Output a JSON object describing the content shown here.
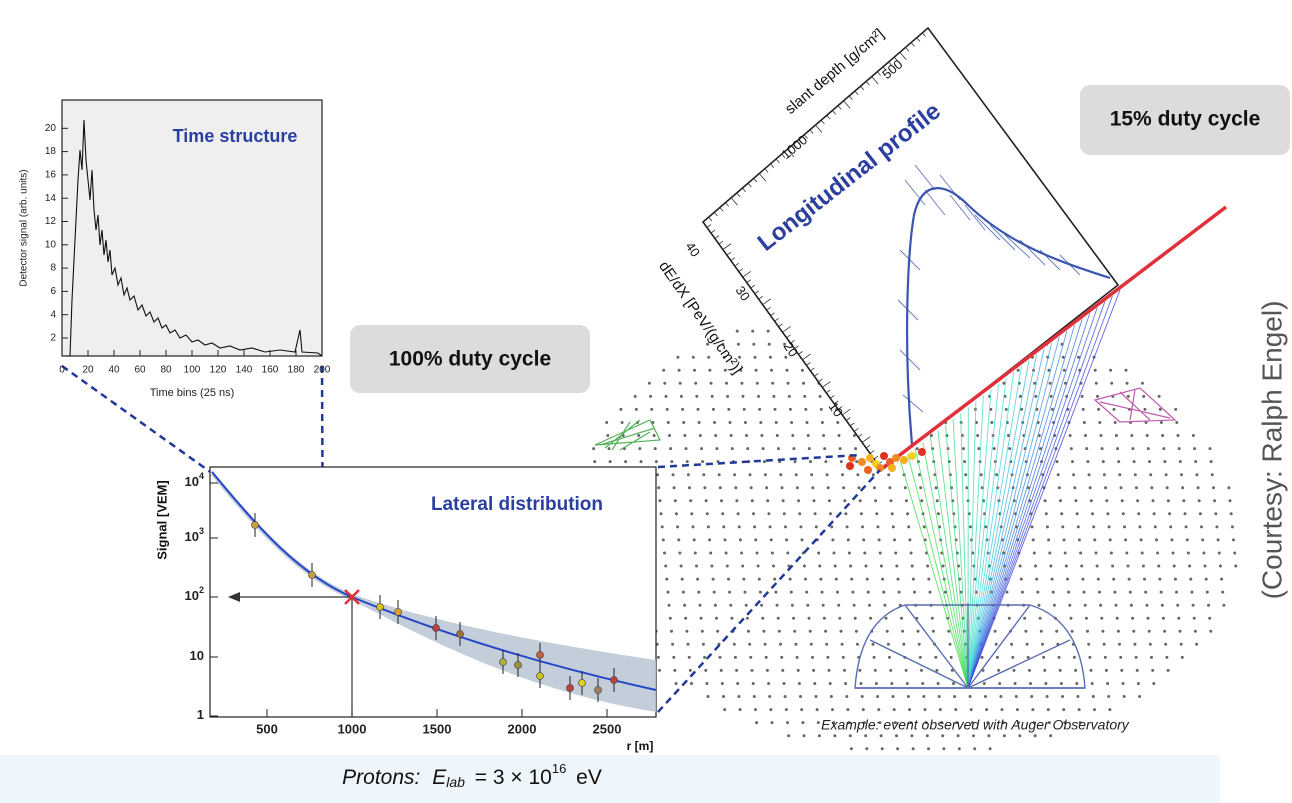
{
  "time_structure": {
    "title": "Time structure",
    "y_label": "Detector signal (arb. units)",
    "x_label": "Time bins (25 ns)",
    "x_ticks": [
      "0",
      "20",
      "40",
      "60",
      "80",
      "100",
      "120",
      "140",
      "160",
      "180",
      "200"
    ],
    "y_ticks": [
      "2",
      "4",
      "6",
      "8",
      "10",
      "12",
      "14",
      "16",
      "18",
      "20"
    ]
  },
  "duty_cycle_surface": "100% duty cycle",
  "duty_cycle_fluorescence": "15% duty cycle",
  "lateral_distribution": {
    "title": "Lateral distribution",
    "y_label": "Signal [VEM]",
    "x_label": "r [m]",
    "x_ticks": [
      "500",
      "1000",
      "1500",
      "2000",
      "2500"
    ],
    "y_ticks": [
      {
        "base": "1"
      },
      {
        "base": "10"
      },
      {
        "base": "10",
        "exp": "2"
      },
      {
        "base": "10",
        "exp": "3"
      },
      {
        "base": "10",
        "exp": "4"
      }
    ]
  },
  "longitudinal_profile": {
    "title": "Longitudinal profile",
    "x_label": "slant depth [g/cm²]",
    "x_ticks": [
      "1000",
      "500"
    ],
    "y_label": "dE/dX [PeV/(g/cm²)]",
    "y_ticks": [
      "10",
      "20",
      "30",
      "40"
    ]
  },
  "caption": "Example: event observed with Auger Observatory",
  "courtesy": "(Courtesy: Ralph Engel)",
  "formula": {
    "particle": "Protons:",
    "symbol": "E",
    "subscript": "lab",
    "equals": "= 3 × 10",
    "exponent": "16",
    "unit": "eV"
  }
}
